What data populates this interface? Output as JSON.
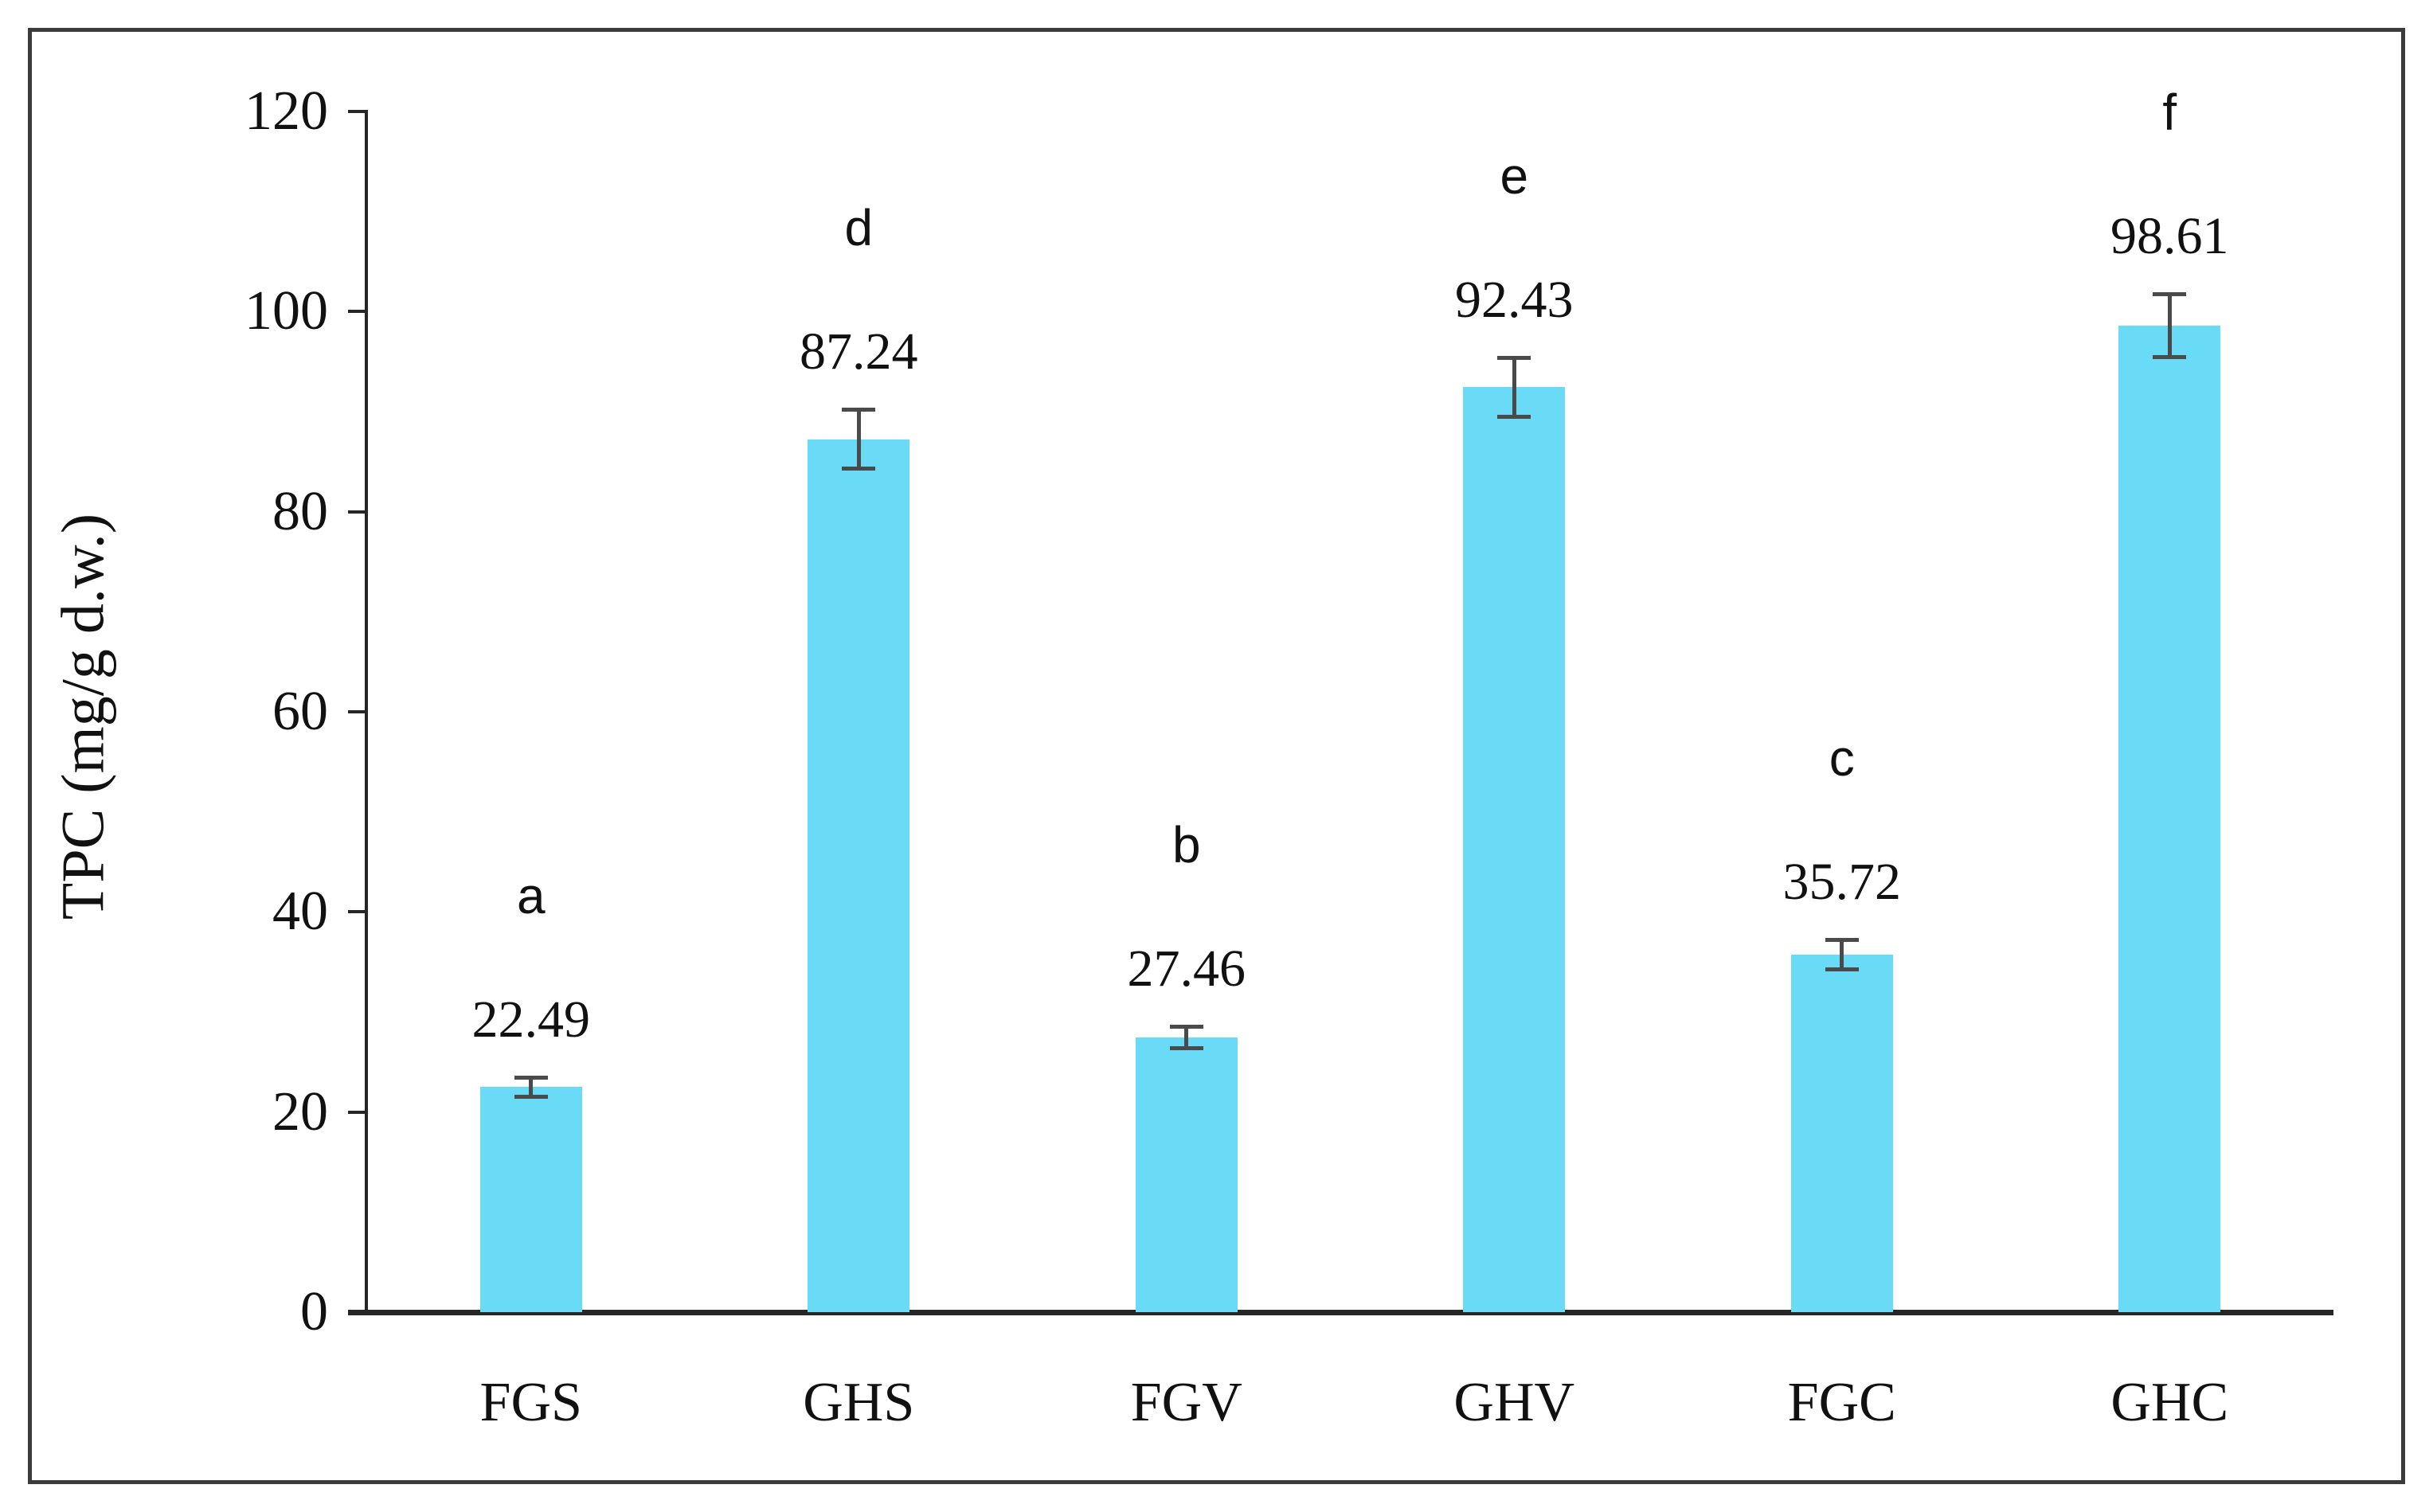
{
  "figure": {
    "background": "#ffffff",
    "border_color": "#3b3b3b"
  },
  "chart_data": {
    "type": "bar",
    "title": "",
    "xlabel": "",
    "ylabel": "TPC (mg/g d.w.)",
    "categories": [
      "FGS",
      "GHS",
      "FGV",
      "GHV",
      "FGC",
      "GHC"
    ],
    "values": [
      22.49,
      87.24,
      27.46,
      92.43,
      35.72,
      98.61
    ],
    "value_labels": [
      "22.49",
      "87.24",
      "27.46",
      "92.43",
      "35.72",
      "98.61"
    ],
    "sig_letters": [
      "a",
      "d",
      "b",
      "e",
      "c",
      "f"
    ],
    "error_bars": [
      1.0,
      3.0,
      1.1,
      3.0,
      1.5,
      3.2
    ],
    "ylim": [
      0,
      120
    ],
    "ytick_step": 20,
    "yticks": [
      "0",
      "20",
      "40",
      "60",
      "80",
      "100",
      "120"
    ],
    "grid": false,
    "legend": "none",
    "bar_color": "#69dbf7",
    "error_color": "#4a4a4a",
    "axis_color": "#262626"
  }
}
